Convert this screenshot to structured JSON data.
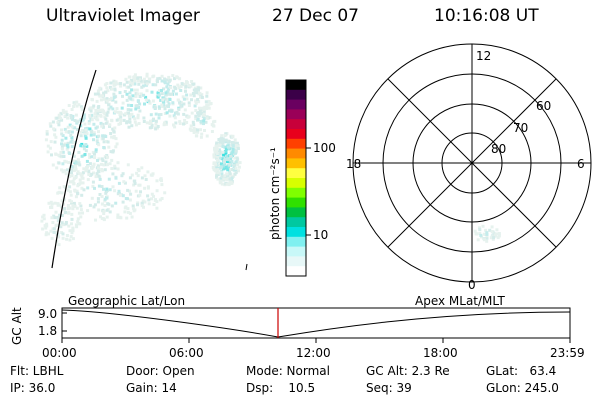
{
  "header": {
    "app_title": "Ultraviolet Imager",
    "date": "27 Dec 07",
    "time": "10:16:08 UT"
  },
  "colorbar": {
    "label": "photon cm⁻²s⁻¹",
    "ticks": [
      "100",
      "10"
    ],
    "colors": [
      "#000000",
      "#3b0048",
      "#6a0060",
      "#9a0058",
      "#c8003a",
      "#e8001c",
      "#ff4000",
      "#ff8a00",
      "#ffc000",
      "#ffff40",
      "#d8ff00",
      "#80ff00",
      "#30e000",
      "#00c040",
      "#00c8a0",
      "#00e0e0",
      "#80f0f0",
      "#c8f8f8",
      "#e8f8f8",
      "#ffffff"
    ]
  },
  "polar": {
    "hour_labels": [
      "12",
      "18",
      "6",
      "0"
    ],
    "lat_labels": [
      "60",
      "70",
      "80"
    ]
  },
  "timeline": {
    "y_axis_label": "GC Alt",
    "y_ticks": [
      "9.0",
      "1.8"
    ],
    "left_label": "Geographic Lat/Lon",
    "right_label": "Apex  MLat/MLT",
    "x_ticks": [
      "00:00",
      "06:00",
      "12:00",
      "18:00",
      "23:59"
    ],
    "marker_color": "#cc0000"
  },
  "info": {
    "filter": "Flt: LBHL",
    "ip": "IP: 36.0",
    "door": "Door: Open",
    "gain": "Gain: 14",
    "mode": "Mode: Normal",
    "dsp": "Dsp:    10.5",
    "gc_alt": "GC Alt: 2.3 Re",
    "seq": "Seq: 39",
    "glat": "GLat:   63.4",
    "glon": "GLon: 245.0"
  }
}
